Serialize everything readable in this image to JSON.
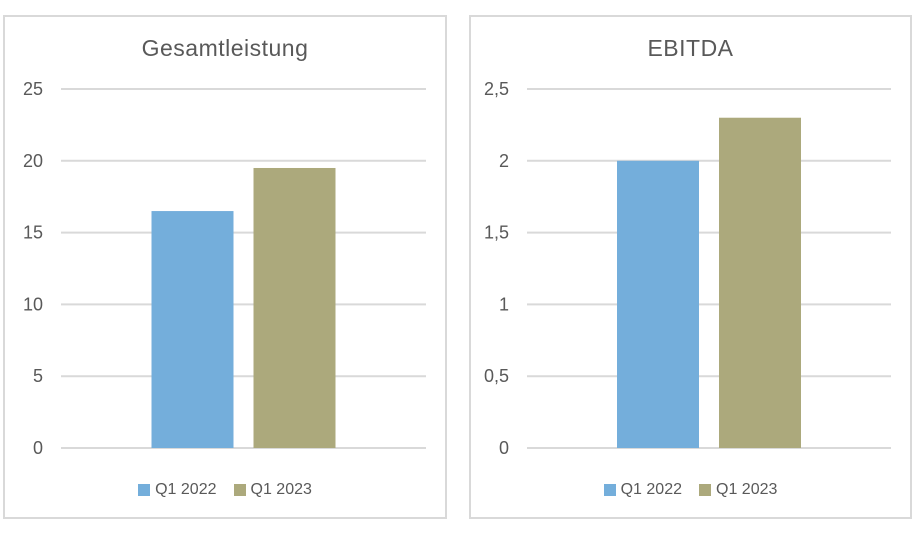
{
  "page": {
    "background": "#FFFFFF"
  },
  "colors": {
    "grid": "#D9D9D9",
    "panel_border": "#D9D9D9",
    "text": "#595959",
    "series_q1_2022": "#74AEDB",
    "series_q1_2023": "#ACA97C"
  },
  "chart_data": [
    {
      "type": "bar",
      "title": "Gesamtleistung",
      "categories": [
        ""
      ],
      "series": [
        {
          "name": "Q1 2022",
          "values": [
            16.5
          ],
          "color": "#74AEDB"
        },
        {
          "name": "Q1 2023",
          "values": [
            19.5
          ],
          "color": "#ACA97C"
        }
      ],
      "xlabel": "",
      "ylabel": "",
      "ylim": [
        0,
        25
      ],
      "yticks": [
        {
          "value": 0,
          "label": "0"
        },
        {
          "value": 5,
          "label": "5"
        },
        {
          "value": 10,
          "label": "10"
        },
        {
          "value": 15,
          "label": "15"
        },
        {
          "value": 20,
          "label": "20"
        },
        {
          "value": 25,
          "label": "25"
        }
      ],
      "grid": true,
      "legend_position": "bottom",
      "legend": [
        "Q1 2022",
        "Q1 2023"
      ]
    },
    {
      "type": "bar",
      "title": "EBITDA",
      "categories": [
        ""
      ],
      "series": [
        {
          "name": "Q1 2022",
          "values": [
            2.0
          ],
          "color": "#74AEDB"
        },
        {
          "name": "Q1 2023",
          "values": [
            2.3
          ],
          "color": "#ACA97C"
        }
      ],
      "xlabel": "",
      "ylabel": "",
      "ylim": [
        0,
        2.5
      ],
      "yticks": [
        {
          "value": 0,
          "label": "0"
        },
        {
          "value": 0.5,
          "label": "0,5"
        },
        {
          "value": 1,
          "label": "1"
        },
        {
          "value": 1.5,
          "label": "1,5"
        },
        {
          "value": 2,
          "label": "2"
        },
        {
          "value": 2.5,
          "label": "2,5"
        }
      ],
      "grid": true,
      "legend_position": "bottom",
      "legend": [
        "Q1 2022",
        "Q1 2023"
      ]
    }
  ]
}
